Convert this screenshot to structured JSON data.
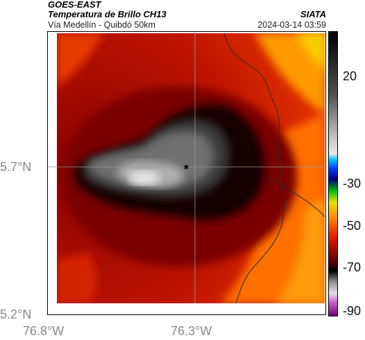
{
  "header": {
    "satellite": "GOES-EAST",
    "product": "Temperatura de Brillo CH13",
    "region": "Vía Medellín - Quibdó 50km",
    "org": "SIATA",
    "datetime": "2024-03-14 03:59"
  },
  "axes": {
    "x_ticks": [
      {
        "value": -76.8,
        "label": "76.8°W"
      },
      {
        "value": -76.3,
        "label": "76.3°W"
      }
    ],
    "y_ticks": [
      {
        "value": 5.7,
        "label": "5.7°N"
      },
      {
        "value": 5.2,
        "label": "5.2°N"
      }
    ]
  },
  "colorbar": {
    "ticks": [
      {
        "value": 20,
        "label": "20"
      },
      {
        "value": -30,
        "label": "-30"
      },
      {
        "value": -50,
        "label": "-50"
      },
      {
        "value": -70,
        "label": "-70"
      },
      {
        "value": -90,
        "label": "-90"
      }
    ]
  },
  "map": {
    "marker": "star-icon",
    "colors": {
      "warm_orange": "#ff8c00",
      "red": "#d01000",
      "dark_red": "#8a0000",
      "black": "#0a0505",
      "grey": "#8a8a8a",
      "white": "#e8e8e8"
    }
  }
}
